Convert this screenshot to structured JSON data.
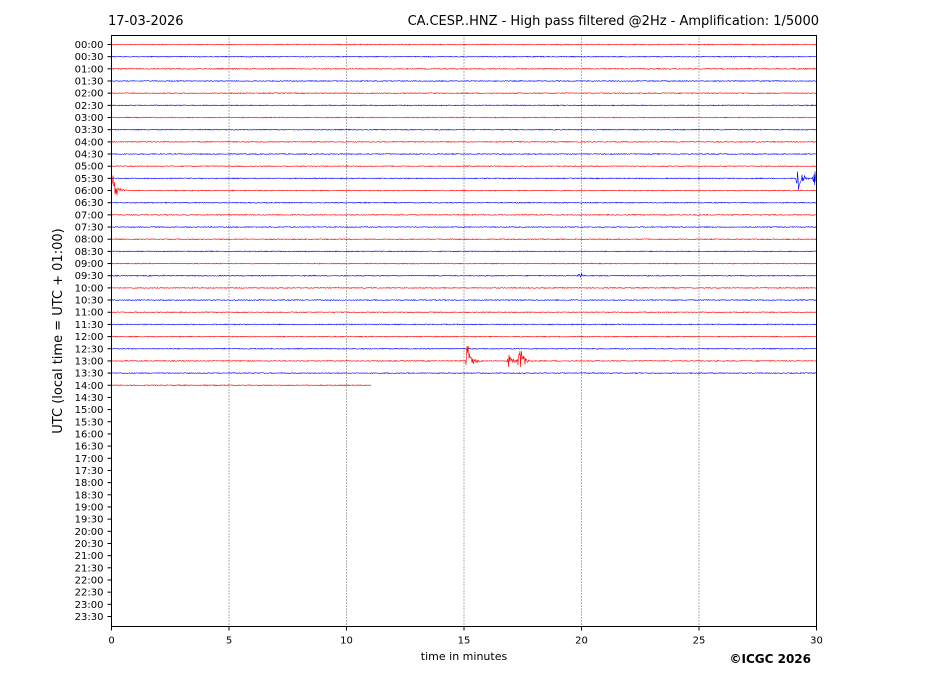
{
  "header": {
    "date": "17-03-2026",
    "title": "CA.CESP..HNZ - High pass filtered @2Hz - Amplification: 1/5000"
  },
  "footer": {
    "copyright": "©ICGC 2026"
  },
  "colors": {
    "red_trace": "#ff0000",
    "blue_trace": "#0000ff",
    "axis": "#000000"
  },
  "chart_data": {
    "type": "line",
    "title": "CA.CESP..HNZ - High pass filtered @2Hz - Amplification: 1/5000",
    "xlabel": "time in minutes",
    "ylabel": "UTC (local time = UTC + 01:00)",
    "xlim": [
      0,
      30
    ],
    "x_ticks": [
      0,
      5,
      10,
      15,
      20,
      25,
      30
    ],
    "vertical_gridlines_at": [
      5,
      10,
      15,
      20,
      25
    ],
    "grid": "vertical dotted",
    "y_tick_labels": [
      "00:00",
      "00:30",
      "01:00",
      "01:30",
      "02:00",
      "02:30",
      "03:00",
      "03:30",
      "04:00",
      "04:30",
      "05:00",
      "05:30",
      "06:00",
      "06:30",
      "07:00",
      "07:30",
      "08:00",
      "08:30",
      "09:00",
      "09:30",
      "10:00",
      "10:30",
      "11:00",
      "11:30",
      "12:00",
      "12:30",
      "13:00",
      "13:30",
      "14:00",
      "14:30",
      "15:00",
      "15:30",
      "16:00",
      "16:30",
      "17:00",
      "17:30",
      "18:00",
      "18:30",
      "19:00",
      "19:30",
      "20:00",
      "20:30",
      "21:00",
      "21:30",
      "22:00",
      "22:30",
      "23:00",
      "23:30"
    ],
    "trace_colors_alternating": [
      "red",
      "blue"
    ],
    "recorded_rows": 29,
    "last_row_end_minute": 11.05,
    "events": [
      {
        "row": "05:30",
        "minute": 29.2,
        "amplitude": 1.0,
        "color": "blue"
      },
      {
        "row": "05:30",
        "minute": 29.9,
        "amplitude": 0.5,
        "color": "blue"
      },
      {
        "row": "06:00",
        "minute": 0.05,
        "amplitude": 1.0,
        "color": "red"
      },
      {
        "row": "09:30",
        "minute": 19.9,
        "amplitude": 0.15,
        "color": "blue"
      },
      {
        "row": "13:00",
        "minute": 15.15,
        "amplitude": 1.0,
        "color": "red"
      },
      {
        "row": "13:00",
        "minute": 16.9,
        "amplitude": 0.35,
        "color": "red"
      },
      {
        "row": "13:00",
        "minute": 17.35,
        "amplitude": 1.0,
        "color": "red"
      }
    ]
  }
}
